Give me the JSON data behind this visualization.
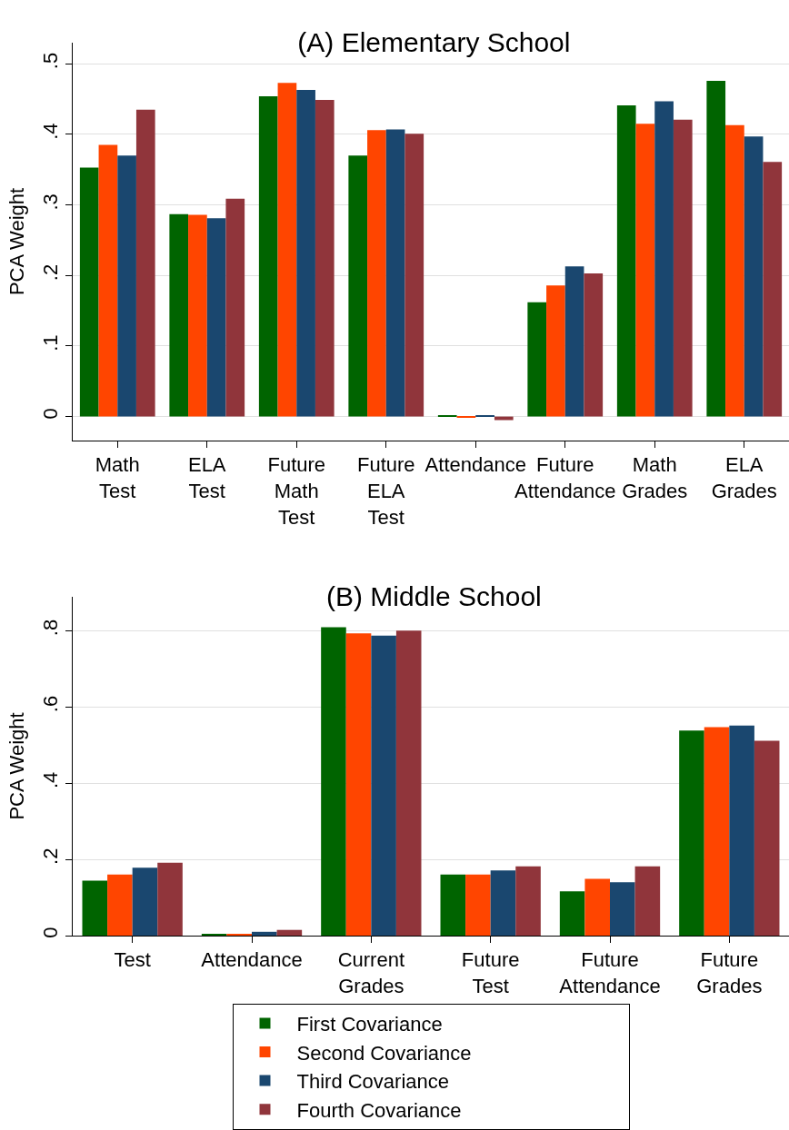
{
  "chart_data": [
    {
      "type": "bar",
      "title": "(A) Elementary School",
      "ylabel": "PCA Weight",
      "categories": [
        "Math Test",
        "ELA Test",
        "Future Math Test",
        "Future ELA Test",
        "Attendance",
        "Future Attendance",
        "Math Grades",
        "ELA Grades"
      ],
      "series": [
        {
          "color": "#006400",
          "values": [
            0.353,
            0.287,
            0.454,
            0.37,
            0.001,
            0.162,
            0.441,
            0.476
          ]
        },
        {
          "color": "#ff4500",
          "values": [
            0.385,
            0.286,
            0.473,
            0.406,
            -0.001,
            0.186,
            0.415,
            0.413
          ]
        },
        {
          "color": "#1a476f",
          "values": [
            0.37,
            0.281,
            0.463,
            0.407,
            0.001,
            0.213,
            0.447,
            0.397
          ]
        },
        {
          "color": "#90353b",
          "values": [
            0.435,
            0.309,
            0.449,
            0.401,
            -0.005,
            0.203,
            0.421,
            0.361
          ]
        }
      ],
      "ylim": [
        -0.034,
        0.53
      ],
      "yticks": [
        {
          "value": 0,
          "label": "0"
        },
        {
          "value": 0.1,
          "label": ".1"
        },
        {
          "value": 0.2,
          "label": ".2"
        },
        {
          "value": 0.3,
          "label": ".3"
        },
        {
          "value": 0.4,
          "label": ".4"
        },
        {
          "value": 0.5,
          "label": ".5"
        }
      ],
      "grid": "y",
      "legend": false
    },
    {
      "type": "bar",
      "title": "(B) Middle School",
      "ylabel": "PCA Weight",
      "categories": [
        "Test",
        "Attendance",
        "Current Grades",
        "Future Test",
        "Future Attendance",
        "Future Grades"
      ],
      "series": [
        {
          "name": "First Covariance",
          "color": "#006400",
          "values": [
            0.144,
            0.004,
            0.809,
            0.16,
            0.116,
            0.538
          ]
        },
        {
          "name": "Second Covariance",
          "color": "#ff4500",
          "values": [
            0.16,
            0.003,
            0.793,
            0.16,
            0.149,
            0.547
          ]
        },
        {
          "name": "Third Covariance",
          "color": "#1a476f",
          "values": [
            0.178,
            0.01,
            0.787,
            0.171,
            0.14,
            0.551
          ]
        },
        {
          "name": "Fourth Covariance",
          "color": "#90353b",
          "values": [
            0.191,
            0.015,
            0.8,
            0.182,
            0.182,
            0.511
          ]
        }
      ],
      "ylim": [
        0,
        0.889
      ],
      "yticks": [
        {
          "value": 0,
          "label": "0"
        },
        {
          "value": 0.2,
          "label": ".2"
        },
        {
          "value": 0.4,
          "label": ".4"
        },
        {
          "value": 0.6,
          "label": ".6"
        },
        {
          "value": 0.8,
          "label": ".8"
        }
      ],
      "grid": "y",
      "legend": "bottom"
    }
  ]
}
